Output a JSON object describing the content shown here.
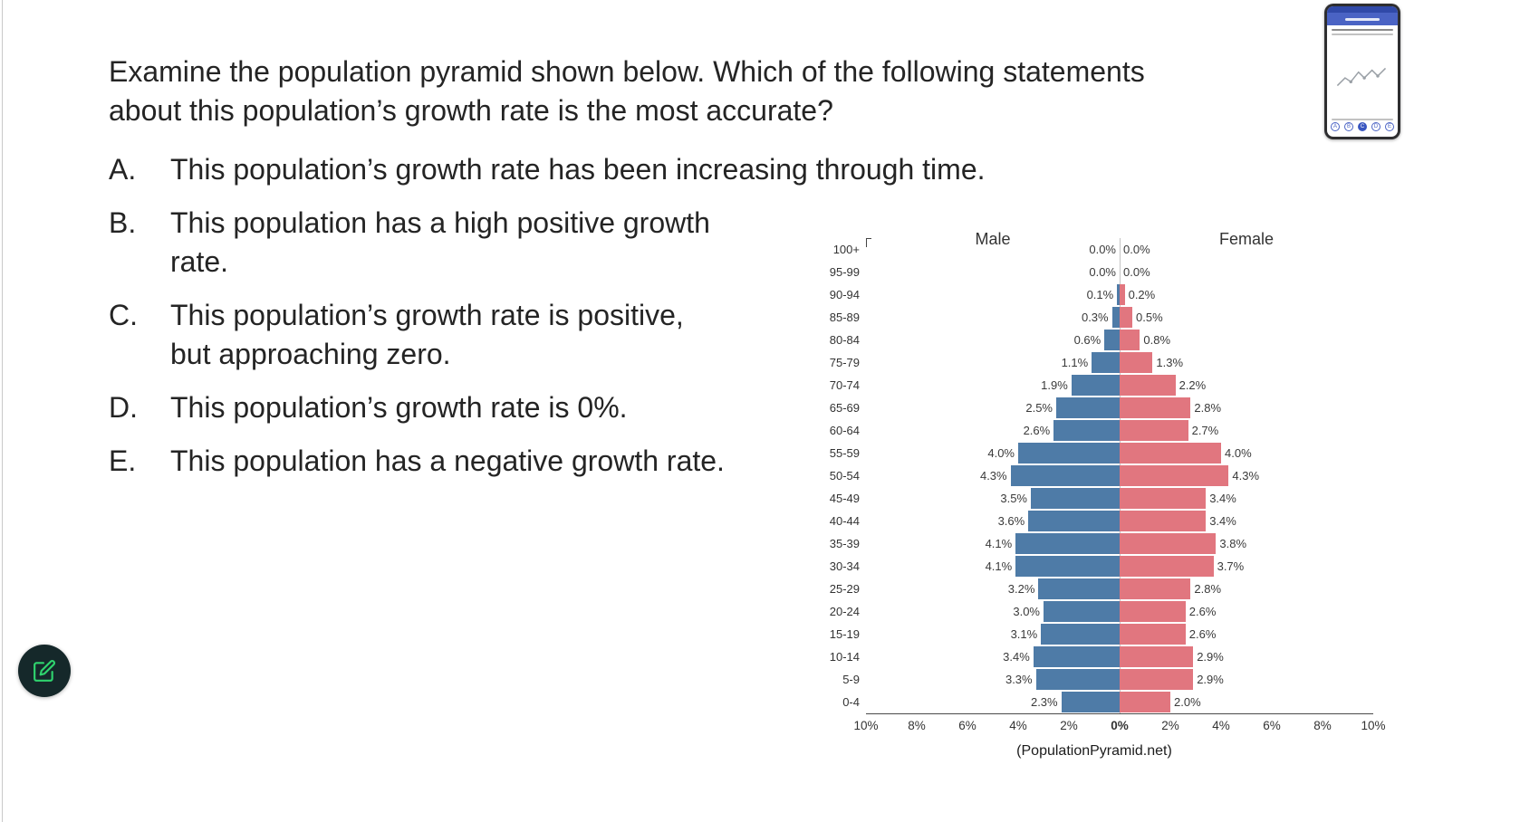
{
  "question": {
    "text": "Examine the population pyramid shown below. Which of the following statements\nabout this population’s growth rate is the most accurate?",
    "options": [
      {
        "letter": "A.",
        "text": "This population’s growth rate has been increasing through time."
      },
      {
        "letter": "B.",
        "text": "This population has a high positive growth\nrate."
      },
      {
        "letter": "C.",
        "text": "This population’s growth rate is positive,\nbut approaching zero."
      },
      {
        "letter": "D.",
        "text": "This population’s growth rate is 0%."
      },
      {
        "letter": "E.",
        "text": "This population has a negative growth rate."
      }
    ]
  },
  "chart_data": {
    "type": "bar",
    "variant": "population_pyramid",
    "left_header": "Male",
    "right_header": "Female",
    "age_groups": [
      "100+",
      "95-99",
      "90-94",
      "85-89",
      "80-84",
      "75-79",
      "70-74",
      "65-69",
      "60-64",
      "55-59",
      "50-54",
      "45-49",
      "40-44",
      "35-39",
      "30-34",
      "25-29",
      "20-24",
      "15-19",
      "10-14",
      "5-9",
      "0-4"
    ],
    "series": [
      {
        "name": "Male",
        "color": "#4e7ba7",
        "values": [
          0.0,
          0.0,
          0.1,
          0.3,
          0.6,
          1.1,
          1.9,
          2.5,
          2.6,
          4.0,
          4.3,
          3.5,
          3.6,
          4.1,
          4.1,
          3.2,
          3.0,
          3.1,
          3.4,
          3.3,
          2.3
        ]
      },
      {
        "name": "Female",
        "color": "#e1767f",
        "values": [
          0.0,
          0.0,
          0.2,
          0.5,
          0.8,
          1.3,
          2.2,
          2.8,
          2.7,
          4.0,
          4.3,
          3.4,
          3.4,
          3.8,
          3.7,
          2.8,
          2.6,
          2.6,
          2.9,
          2.9,
          2.0
        ]
      }
    ],
    "x_ticks": [
      "10%",
      "8%",
      "6%",
      "4%",
      "2%",
      "0%",
      "2%",
      "4%",
      "6%",
      "8%",
      "10%"
    ],
    "x_max_percent": 10,
    "value_unit": "%",
    "grid": false,
    "attribution": "(PopulationPyramid.net)"
  },
  "phone_preview": {
    "answer_choices": [
      "A",
      "B",
      "C",
      "D",
      "E"
    ],
    "selected_choice": "C"
  },
  "icons": {
    "edit_button": "pencil-icon"
  },
  "colors": {
    "male_bar": "#4e7ba7",
    "female_bar": "#e1767f",
    "phone_accent_blue": "#4a63c4",
    "edit_icon_green": "#2fd36e"
  }
}
